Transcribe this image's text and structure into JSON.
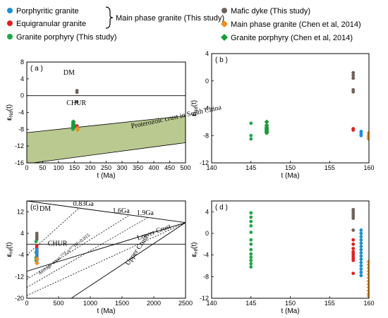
{
  "legend": {
    "items": [
      {
        "label": "Porphyritic granite",
        "color": "#1f8fd6",
        "marker": "circle"
      },
      {
        "label": "Equigranular granite",
        "color": "#e02020",
        "marker": "circle"
      },
      {
        "label": "Granite porphyry (This study)",
        "color": "#20a84a",
        "marker": "circle"
      },
      {
        "label": "Mafic dyke (This study)",
        "color": "#6f625a",
        "marker": "circle"
      },
      {
        "label": "Main phase granite (Chen et al, 2014)",
        "color": "#f0901a",
        "marker": "diamond"
      },
      {
        "label": "Granite porphyry (Chen et al, 2014)",
        "color": "#1a9a3a",
        "marker": "diamond"
      }
    ],
    "group_label": "Main phase granite (This study)"
  },
  "chart_data": [
    {
      "id": "a",
      "type": "scatter",
      "panel_label": "( a )",
      "xlabel": "t (Ma)",
      "ylabel_main": "ε",
      "ylabel_sub": "Nd",
      "ylabel_tail": "(t)",
      "xlim": [
        0,
        500
      ],
      "ylim": [
        -16,
        8
      ],
      "xticks": [
        0,
        50,
        100,
        150,
        200,
        250,
        300,
        350,
        400,
        450,
        500
      ],
      "yticks": [
        -16,
        -12,
        -8,
        -4,
        0,
        4,
        8
      ],
      "annotations": [
        "DM",
        "CHUR",
        "Proterozoic crust in South China"
      ],
      "lines": [
        {
          "name": "DM",
          "points": [
            [
              0,
              10
            ],
            [
              500,
              8
            ]
          ]
        },
        {
          "name": "CHUR",
          "points": [
            [
              0,
              0
            ],
            [
              500,
              0
            ]
          ]
        }
      ],
      "band": {
        "name": "Proterozoic crust in South China",
        "color": "#b9c98f",
        "upper": [
          [
            0,
            -8.8
          ],
          [
            500,
            -4.8
          ]
        ],
        "lower": [
          [
            0,
            -16.2
          ],
          [
            500,
            -11.2
          ]
        ]
      },
      "series": [
        {
          "color": "#6f625a",
          "marker": "circle",
          "points": [
            [
              158,
              0.8
            ],
            [
              158,
              1.2
            ],
            [
              158,
              -1.5
            ]
          ]
        },
        {
          "color": "#20a84a",
          "marker": "circle",
          "points": [
            [
              145,
              -6.3
            ],
            [
              145,
              -7.0
            ],
            [
              145,
              -7.5
            ],
            [
              145,
              -8.0
            ]
          ]
        },
        {
          "color": "#1a9a3a",
          "marker": "diamond",
          "points": [
            [
              147,
              -6.2
            ],
            [
              147,
              -6.7
            ],
            [
              147,
              -7.0
            ],
            [
              147,
              -7.3
            ],
            [
              147,
              -7.6
            ]
          ]
        },
        {
          "color": "#1f8fd6",
          "marker": "circle",
          "points": [
            [
              159,
              -7.4
            ],
            [
              159,
              -7.8
            ]
          ]
        },
        {
          "color": "#e02020",
          "marker": "circle",
          "points": [
            [
              158,
              -7.2
            ]
          ]
        },
        {
          "color": "#f0901a",
          "marker": "diamond",
          "points": [
            [
              160,
              -7.8
            ],
            [
              160,
              -8.1
            ]
          ]
        }
      ]
    },
    {
      "id": "b",
      "type": "scatter",
      "panel_label": "( b )",
      "xlabel": "t (Ma)",
      "ylabel_main": "ε",
      "ylabel_sub": "Nd",
      "ylabel_tail": "(t)",
      "xlim": [
        140,
        160
      ],
      "ylim": [
        -12,
        4
      ],
      "xticks": [
        140,
        145,
        150,
        155,
        160
      ],
      "yticks": [
        -12,
        -8,
        -4,
        0,
        4
      ],
      "series": [
        {
          "color": "#6f625a",
          "marker": "circle",
          "points": [
            [
              158,
              1.2
            ],
            [
              158,
              0.8
            ],
            [
              158,
              0.4
            ],
            [
              158,
              -1.3
            ],
            [
              158,
              -1.6
            ]
          ]
        },
        {
          "color": "#e02020",
          "marker": "circle",
          "points": [
            [
              158,
              -7.0
            ],
            [
              158,
              -7.2
            ]
          ]
        },
        {
          "color": "#20a84a",
          "marker": "circle",
          "points": [
            [
              145,
              -6.2
            ],
            [
              145,
              -8.0
            ],
            [
              145,
              -8.5
            ]
          ]
        },
        {
          "color": "#1a9a3a",
          "marker": "diamond",
          "points": [
            [
              147,
              -6.0
            ],
            [
              147,
              -6.5
            ],
            [
              147,
              -6.8
            ],
            [
              147,
              -7.0
            ],
            [
              147,
              -7.2
            ],
            [
              147,
              -7.4
            ],
            [
              147,
              -7.6
            ]
          ]
        },
        {
          "color": "#1f8fd6",
          "marker": "circle",
          "points": [
            [
              159,
              -7.4
            ],
            [
              159,
              -7.7
            ],
            [
              159,
              -8.0
            ]
          ]
        },
        {
          "color": "#f0901a",
          "marker": "diamond",
          "points": [
            [
              160,
              -7.6
            ],
            [
              160,
              -7.9
            ],
            [
              160,
              -8.1
            ],
            [
              160,
              -8.3
            ],
            [
              160,
              -8.5
            ]
          ]
        }
      ]
    },
    {
      "id": "c",
      "type": "scatter",
      "panel_label": "(c)",
      "xlabel": "t (Ma)",
      "ylabel_main": "ε",
      "ylabel_sub": "Hf",
      "ylabel_tail": "(t)",
      "xlim": [
        0,
        2500
      ],
      "ylim": [
        -20,
        16
      ],
      "xticks": [
        0,
        500,
        1000,
        1500,
        2000,
        2500
      ],
      "yticks": [
        -20,
        -12,
        -4,
        4,
        12
      ],
      "annotations": [
        "DM",
        "CHUR",
        "0.83Ga",
        "1.6Ga",
        "1.9Ga",
        "Lower Crust",
        "Upper Crust",
        "Average crust ¹⁷⁶Lu/¹⁷⁷Hf=0.015"
      ],
      "lines": [
        {
          "name": "DM",
          "style": "solid",
          "points": [
            [
              0,
              16
            ],
            [
              2500,
              8
            ]
          ]
        },
        {
          "name": "CHUR",
          "style": "solid",
          "points": [
            [
              0,
              0
            ],
            [
              2500,
              0
            ]
          ]
        },
        {
          "name": "Lower Crust",
          "style": "solid",
          "points": [
            [
              0,
              -10
            ],
            [
              2500,
              8
            ]
          ]
        },
        {
          "name": "Upper Crust",
          "style": "solid",
          "points": [
            [
              700,
              -20
            ],
            [
              2500,
              8
            ]
          ]
        },
        {
          "name": "0.83Ga",
          "style": "dotted",
          "points": [
            [
              0,
              -4
            ],
            [
              830,
              13.5
            ]
          ]
        },
        {
          "name": "1.6Ga",
          "style": "dotted",
          "points": [
            [
              0,
              -13
            ],
            [
              1600,
              10.5
            ]
          ]
        },
        {
          "name": "1.9Ga",
          "style": "dotted",
          "points": [
            [
              0,
              -16
            ],
            [
              1900,
              9.8
            ]
          ]
        },
        {
          "name": "Average crust",
          "style": "dotted",
          "points": [
            [
              0,
              -19
            ],
            [
              2500,
              8
            ]
          ]
        }
      ],
      "series": [
        {
          "color": "#6f625a",
          "marker": "circle",
          "points": [
            [
              158,
              4.0
            ],
            [
              158,
              3.2
            ],
            [
              158,
              2.5
            ],
            [
              158,
              1.8
            ]
          ]
        },
        {
          "color": "#e02020",
          "marker": "circle",
          "points": [
            [
              158,
              -0.5
            ],
            [
              158,
              -1.5
            ],
            [
              158,
              -2.5
            ],
            [
              158,
              -3.5
            ],
            [
              158,
              -4.5
            ]
          ]
        },
        {
          "color": "#20a84a",
          "marker": "circle",
          "points": [
            [
              145,
              1.0
            ],
            [
              145,
              -3.0
            ],
            [
              145,
              -5.0
            ],
            [
              145,
              -6.0
            ]
          ]
        },
        {
          "color": "#1f8fd6",
          "marker": "circle",
          "points": [
            [
              159,
              -2.0
            ],
            [
              159,
              -3.0
            ],
            [
              159,
              -4.0
            ],
            [
              159,
              -5.0
            ],
            [
              159,
              -6.0
            ]
          ]
        },
        {
          "color": "#f0901a",
          "marker": "diamond",
          "points": [
            [
              160,
              -5.5
            ],
            [
              160,
              -7.0
            ]
          ]
        }
      ]
    },
    {
      "id": "d",
      "type": "scatter",
      "panel_label": "( d )",
      "xlabel": "t (Ma)",
      "ylabel_main": "ε",
      "ylabel_sub": "Hf",
      "ylabel_tail": "(t)",
      "xlim": [
        140,
        160
      ],
      "ylim": [
        -12,
        6
      ],
      "xticks": [
        140,
        145,
        150,
        155,
        160
      ],
      "yticks": [
        -12,
        -8,
        -4,
        0,
        4
      ],
      "series": [
        {
          "color": "#20a84a",
          "marker": "circle",
          "points": [
            [
              145,
              3.8
            ],
            [
              145,
              3.0
            ],
            [
              145,
              2.2
            ],
            [
              145,
              1.4
            ],
            [
              145,
              0.2
            ],
            [
              145,
              -1.2
            ],
            [
              145,
              -2.0
            ],
            [
              145,
              -3.0
            ],
            [
              145,
              -3.8
            ],
            [
              145,
              -4.4
            ],
            [
              145,
              -5.0
            ],
            [
              145,
              -5.6
            ],
            [
              145,
              -6.2
            ]
          ]
        },
        {
          "color": "#6f625a",
          "marker": "circle",
          "points": [
            [
              158,
              4.4
            ],
            [
              158,
              4.0
            ],
            [
              158,
              3.6
            ],
            [
              158,
              3.2
            ],
            [
              158,
              2.8
            ],
            [
              158,
              0.6
            ]
          ]
        },
        {
          "color": "#e02020",
          "marker": "circle",
          "points": [
            [
              158,
              -1.2
            ],
            [
              158,
              -2.0
            ],
            [
              158,
              -2.8
            ],
            [
              158,
              -3.4
            ],
            [
              158,
              -3.8
            ],
            [
              158,
              -4.2
            ],
            [
              158,
              -4.6
            ],
            [
              158,
              -5.0
            ],
            [
              158,
              -7.4
            ]
          ]
        },
        {
          "color": "#1f8fd6",
          "marker": "circle",
          "points": [
            [
              159,
              0.6
            ],
            [
              159,
              0.0
            ],
            [
              159,
              -0.6
            ],
            [
              159,
              -1.2
            ],
            [
              159,
              -1.8
            ],
            [
              159,
              -2.4
            ],
            [
              159,
              -3.0
            ],
            [
              159,
              -3.6
            ],
            [
              159,
              -4.2
            ],
            [
              159,
              -4.8
            ],
            [
              159,
              -5.4
            ],
            [
              159,
              -6.0
            ],
            [
              159,
              -6.6
            ],
            [
              159,
              -7.2
            ],
            [
              159,
              -7.8
            ]
          ]
        },
        {
          "color": "#f0901a",
          "marker": "diamond",
          "points": [
            [
              160,
              -5.2
            ],
            [
              160,
              -5.8
            ],
            [
              160,
              -6.4
            ],
            [
              160,
              -7.0
            ],
            [
              160,
              -7.6
            ],
            [
              160,
              -8.2
            ],
            [
              160,
              -8.8
            ],
            [
              160,
              -9.4
            ],
            [
              160,
              -10.0
            ],
            [
              160,
              -10.6
            ],
            [
              160,
              -11.2
            ],
            [
              160,
              -11.6
            ]
          ]
        }
      ]
    }
  ]
}
